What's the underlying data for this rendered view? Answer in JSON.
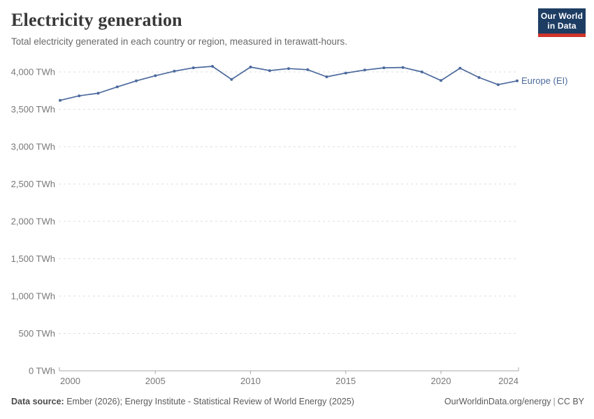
{
  "header": {
    "title": "Electricity generation",
    "subtitle": "Total electricity generated in each country or region, measured in terawatt-hours."
  },
  "logo": {
    "line1": "Our World",
    "line2": "in Data",
    "bg_color": "#1d3d63",
    "stripe_color": "#d0342c"
  },
  "chart_data": {
    "type": "line",
    "title": "Electricity generation",
    "unit": "TWh",
    "grid": "dashed-horizontal",
    "legend_position": "right-of-line-end",
    "x": [
      2000,
      2001,
      2002,
      2003,
      2004,
      2005,
      2006,
      2007,
      2008,
      2009,
      2010,
      2011,
      2012,
      2013,
      2014,
      2015,
      2016,
      2017,
      2018,
      2019,
      2020,
      2021,
      2022,
      2023,
      2024
    ],
    "series": [
      {
        "name": "Europe (EI)",
        "color": "#4c6a9d",
        "values": [
          3620,
          3680,
          3715,
          3800,
          3880,
          3950,
          4010,
          4055,
          4075,
          3900,
          4065,
          4018,
          4045,
          4030,
          3935,
          3985,
          4025,
          4055,
          4060,
          4000,
          3885,
          4050,
          3925,
          3830,
          3880
        ]
      }
    ],
    "xlim": [
      2000,
      2024
    ],
    "ylim": [
      0,
      4000
    ],
    "x_ticks": [
      2000,
      2005,
      2010,
      2015,
      2020,
      2024
    ],
    "y_ticks": [
      0,
      500,
      1000,
      1500,
      2000,
      2500,
      3000,
      3500,
      4000
    ],
    "y_tick_labels": [
      "0 TWh",
      "500 TWh",
      "1,000 TWh",
      "1,500 TWh",
      "2,000 TWh",
      "2,500 TWh",
      "3,000 TWh",
      "3,500 TWh",
      "4,000 TWh"
    ],
    "colors": {
      "line": "#4c6a9d",
      "gridline": "#dddddd",
      "axis": "#a8a8a8",
      "tick_text": "#787878"
    }
  },
  "footer": {
    "source_label": "Data source:",
    "source_text": "Ember (2026); Energy Institute - Statistical Review of World Energy (2025)",
    "url": "OurWorldinData.org/energy",
    "separator": "|",
    "license": "CC BY"
  }
}
